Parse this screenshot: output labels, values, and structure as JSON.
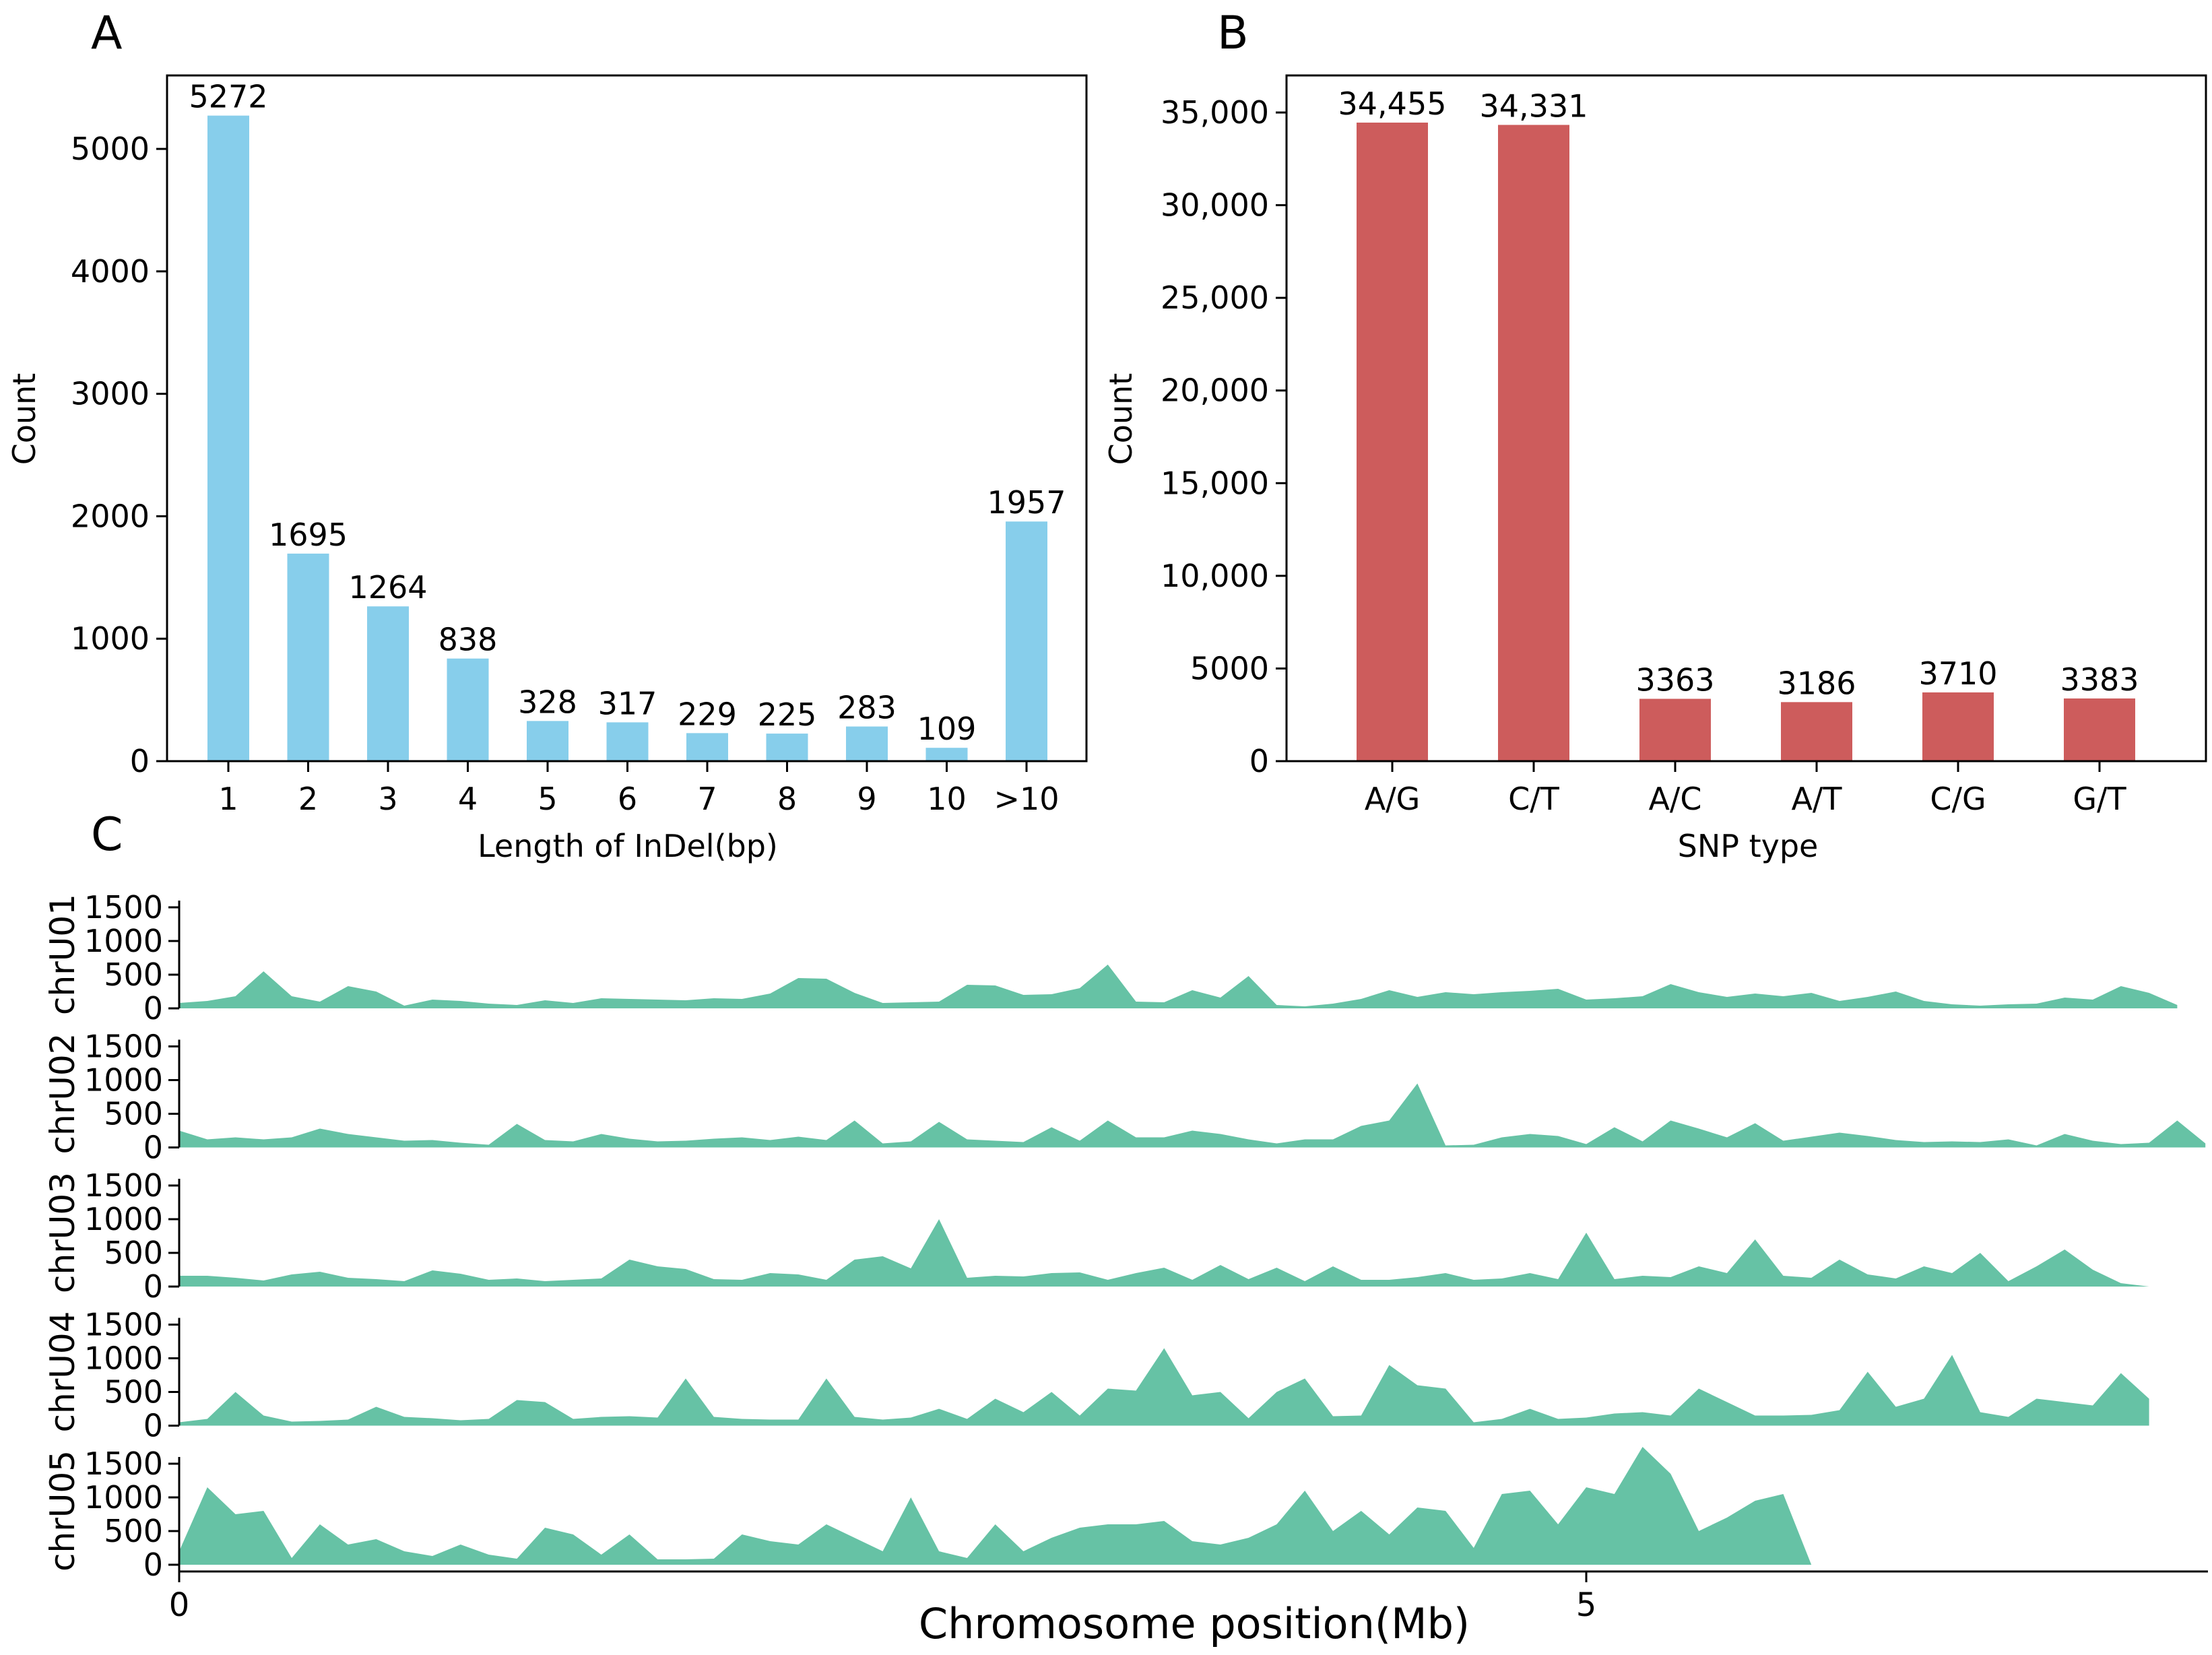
{
  "panels": {
    "a": {
      "letter": "A"
    },
    "b": {
      "letter": "B"
    },
    "c": {
      "letter": "C"
    }
  },
  "colors": {
    "indel": "#87ceeb",
    "snp": "#cd5c5c",
    "density": "#66c2a5",
    "axis": "#000000"
  },
  "chart_data": [
    {
      "id": "indel",
      "type": "bar",
      "categories": [
        "1",
        "2",
        "3",
        "4",
        "5",
        "6",
        "7",
        "8",
        "9",
        "10",
        ">10"
      ],
      "values": [
        5272,
        1695,
        1264,
        838,
        328,
        317,
        229,
        225,
        283,
        109,
        1957
      ],
      "value_labels": [
        "5272",
        "1695",
        "1264",
        "838",
        "328",
        "317",
        "229",
        "225",
        "283",
        "109",
        "1957"
      ],
      "title": "",
      "xlabel": "Length of InDel(bp)",
      "ylabel": "Count",
      "ylim": [
        0,
        5600
      ],
      "yticks": [
        0,
        1000,
        2000,
        3000,
        4000,
        5000
      ],
      "ytick_labels": [
        "0",
        "1000",
        "2000",
        "3000",
        "4000",
        "5000"
      ]
    },
    {
      "id": "snp",
      "type": "bar",
      "categories": [
        "A/G",
        "C/T",
        "A/C",
        "A/T",
        "C/G",
        "G/T"
      ],
      "values": [
        34455,
        34331,
        3363,
        3186,
        3710,
        3383
      ],
      "value_labels": [
        "34,455",
        "34,331",
        "3363",
        "3186",
        "3710",
        "3383"
      ],
      "title": "",
      "xlabel": "SNP type",
      "ylabel": "Count",
      "ylim": [
        0,
        37000
      ],
      "yticks": [
        0,
        5000,
        10000,
        15000,
        20000,
        25000,
        30000,
        35000
      ],
      "ytick_labels": [
        "0",
        "5000",
        "10,000",
        "15,000",
        "20,000",
        "25,000",
        "30,000",
        "35,000"
      ]
    },
    {
      "id": "density",
      "type": "area",
      "xlabel": "Chromosome position(Mb)",
      "xlim": [
        0,
        7.2
      ],
      "xticks": [
        0,
        5
      ],
      "xtick_labels": [
        "0",
        "5"
      ],
      "ylim": [
        0,
        1800
      ],
      "yticks": [
        0,
        500,
        1000,
        1500
      ],
      "ytick_labels": [
        "0",
        "500",
        "1000",
        "1500"
      ],
      "bin_mb": 0.1,
      "series": [
        {
          "name": "chrU01",
          "values": [
            80,
            110,
            180,
            550,
            180,
            100,
            330,
            250,
            40,
            130,
            110,
            70,
            50,
            120,
            80,
            150,
            140,
            130,
            120,
            150,
            140,
            220,
            450,
            440,
            230,
            80,
            90,
            100,
            350,
            340,
            200,
            210,
            300,
            650,
            100,
            90,
            270,
            160,
            480,
            50,
            30,
            70,
            140,
            270,
            170,
            240,
            210,
            240,
            260,
            290,
            130,
            150,
            180,
            360,
            240,
            170,
            220,
            180,
            230,
            110,
            170,
            250,
            110,
            60,
            40,
            60,
            70,
            160,
            130,
            330,
            230,
            50
          ]
        },
        {
          "name": "chrU02",
          "values": [
            250,
            120,
            150,
            120,
            150,
            280,
            200,
            150,
            100,
            110,
            70,
            40,
            350,
            110,
            90,
            200,
            130,
            90,
            100,
            130,
            150,
            110,
            160,
            110,
            400,
            60,
            90,
            380,
            120,
            100,
            80,
            300,
            100,
            400,
            150,
            150,
            250,
            200,
            120,
            60,
            120,
            120,
            320,
            400,
            950,
            30,
            40,
            150,
            200,
            170,
            50,
            300,
            90,
            400,
            280,
            150,
            360,
            100,
            160,
            220,
            170,
            110,
            80,
            90,
            80,
            120,
            30,
            200,
            100,
            50,
            70,
            400,
            60
          ]
        },
        {
          "name": "chrU03",
          "values": [
            160,
            160,
            130,
            90,
            180,
            220,
            130,
            110,
            80,
            240,
            190,
            100,
            120,
            80,
            100,
            120,
            400,
            300,
            260,
            110,
            100,
            200,
            180,
            100,
            400,
            450,
            270,
            1000,
            130,
            160,
            150,
            200,
            210,
            100,
            200,
            280,
            100,
            320,
            110,
            280,
            80,
            300,
            100,
            100,
            140,
            200,
            100,
            120,
            200,
            110,
            800,
            110,
            160,
            140,
            300,
            200,
            700,
            160,
            130,
            400,
            180,
            120,
            300,
            200,
            500,
            80,
            300,
            550,
            250,
            50,
            0
          ]
        },
        {
          "name": "chrU04",
          "values": [
            50,
            100,
            500,
            150,
            60,
            70,
            90,
            280,
            130,
            110,
            80,
            100,
            380,
            350,
            100,
            130,
            140,
            120,
            700,
            130,
            100,
            90,
            90,
            700,
            130,
            90,
            120,
            250,
            100,
            400,
            200,
            500,
            150,
            550,
            520,
            1150,
            450,
            500,
            110,
            500,
            700,
            140,
            150,
            900,
            600,
            550,
            50,
            100,
            250,
            100,
            120,
            180,
            200,
            150,
            550,
            350,
            150,
            150,
            160,
            230,
            800,
            280,
            400,
            1050,
            200,
            130,
            400,
            350,
            300,
            780,
            400
          ]
        },
        {
          "name": "chrU05",
          "values": [
            200,
            1150,
            750,
            800,
            100,
            600,
            300,
            380,
            200,
            130,
            300,
            150,
            90,
            550,
            450,
            150,
            450,
            80,
            80,
            90,
            450,
            350,
            300,
            600,
            400,
            200,
            1000,
            200,
            100,
            600,
            200,
            400,
            550,
            600,
            600,
            650,
            350,
            300,
            400,
            600,
            1100,
            500,
            800,
            450,
            850,
            800,
            250,
            1050,
            1100,
            600,
            1150,
            1050,
            1750,
            1350,
            500,
            700,
            950,
            1050,
            0
          ]
        }
      ]
    }
  ]
}
